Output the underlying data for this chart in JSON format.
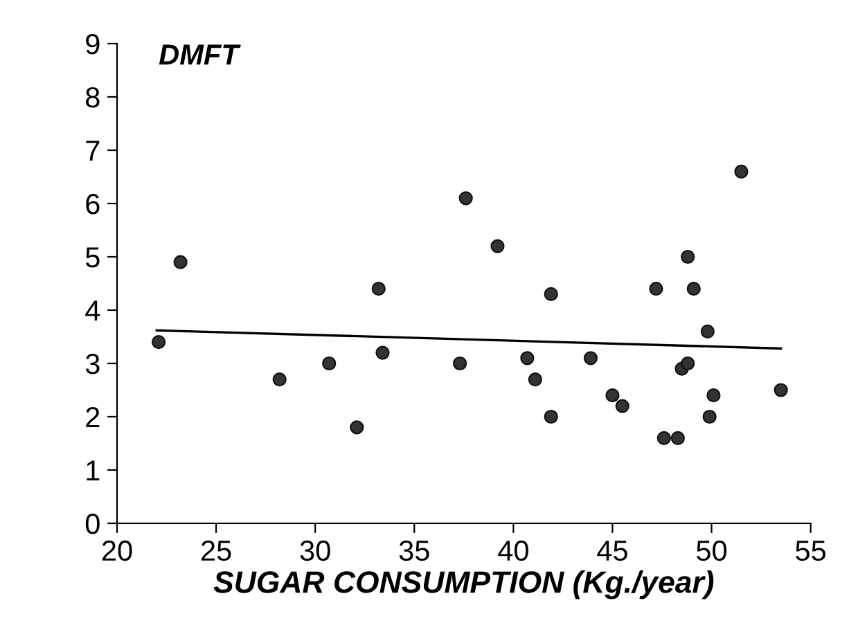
{
  "chart_data": {
    "type": "scatter",
    "title": "DMFT",
    "xlabel": "SUGAR CONSUMPTION (Kg./year)",
    "xlim": [
      20,
      55
    ],
    "xticks": [
      20,
      25,
      30,
      35,
      40,
      45,
      50,
      55
    ],
    "ylim": [
      0,
      9
    ],
    "yticks": [
      0,
      1,
      2,
      3,
      4,
      5,
      6,
      7,
      8,
      9
    ],
    "grid": false,
    "legend": false,
    "series": [
      {
        "marker": "circle",
        "color": "#333333",
        "x": [
          22.1,
          23.2,
          28.2,
          30.7,
          32.1,
          33.2,
          33.4,
          37.3,
          37.6,
          39.2,
          40.7,
          41.1,
          41.9,
          41.9,
          43.9,
          45.0,
          45.5,
          47.2,
          47.6,
          48.3,
          48.5,
          48.8,
          48.8,
          49.1,
          49.8,
          49.9,
          50.1,
          51.5,
          53.5
        ],
        "values": [
          3.4,
          4.9,
          2.7,
          3.0,
          1.8,
          4.4,
          3.2,
          3.0,
          6.1,
          5.2,
          3.1,
          2.7,
          2.0,
          4.3,
          3.1,
          2.4,
          2.2,
          4.4,
          1.6,
          1.6,
          2.9,
          3.0,
          5.0,
          4.4,
          3.6,
          2.0,
          2.4,
          6.6,
          2.5
        ]
      },
      {
        "type": "line",
        "color": "#000000",
        "x": [
          22,
          53.5
        ],
        "values": [
          3.62,
          3.28
        ]
      }
    ]
  }
}
